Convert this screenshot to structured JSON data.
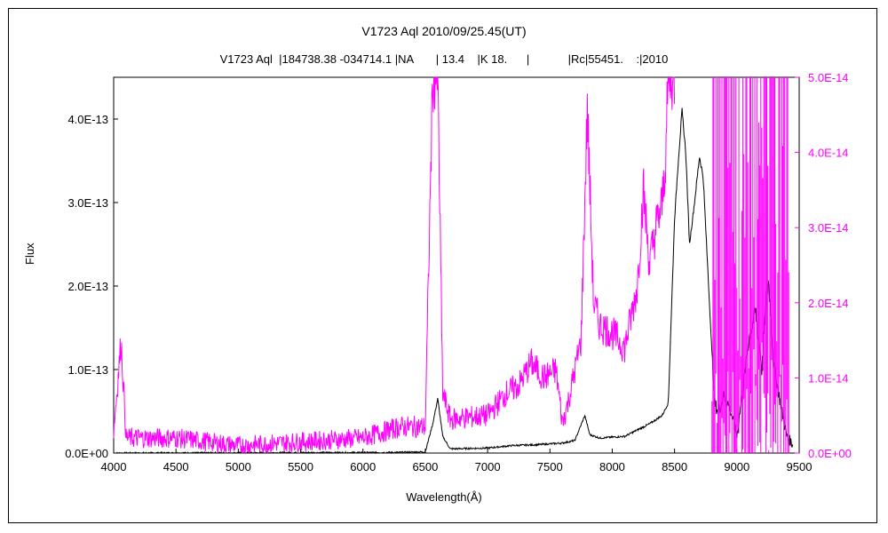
{
  "chart_data": {
    "type": "line",
    "title": "V1723 Aql   2010/09/25.45(UT)",
    "subtitle": "V1723 Aql  |184738.38 -034714.1 |NA       | 13.4    |K 18.      |            |Rc|55451.    :|2010",
    "xlabel": "Wavelength(Å)",
    "ylabel": "Flux",
    "xlim": [
      4000,
      9500
    ],
    "ylim_left": [
      0,
      4.5e-13
    ],
    "ylim_right": [
      0,
      5e-14
    ],
    "x_ticks": [
      4000,
      4500,
      5000,
      5500,
      6000,
      6500,
      7000,
      7500,
      8000,
      8500,
      9000,
      9500
    ],
    "y_ticks_left": [
      "0.0E+00",
      "1.0E-13",
      "2.0E-13",
      "3.0E-13",
      "4.0E-13"
    ],
    "y_ticks_right": [
      "0.0E+00",
      "1.0E-14",
      "2.0E-14",
      "3.0E-14",
      "4.0E-14",
      "5.0E-14"
    ],
    "grid": false,
    "colors": {
      "flux": "#000000",
      "flux_scaled": "#ff00ff"
    },
    "series": [
      {
        "axis": "left",
        "color": "#000000",
        "x": [
          4000,
          4200,
          4500,
          5000,
          5500,
          6000,
          6300,
          6500,
          6560,
          6600,
          6640,
          6700,
          7000,
          7200,
          7400,
          7600,
          7700,
          7780,
          7820,
          7900,
          8100,
          8300,
          8400,
          8450,
          8500,
          8530,
          8560,
          8590,
          8620,
          8660,
          8700,
          8730,
          8780,
          8820,
          8850,
          8900,
          8950,
          9000,
          9050,
          9100,
          9150,
          9200,
          9250,
          9280,
          9300,
          9350,
          9400,
          9450
        ],
        "y": [
          0,
          1e-16,
          2e-16,
          3e-16,
          5e-16,
          6e-16,
          8e-16,
          1.5e-15,
          3.5e-14,
          6.5e-14,
          2e-14,
          5e-15,
          6e-15,
          9e-15,
          1e-14,
          1.2e-14,
          1.5e-14,
          4.5e-14,
          2.2e-14,
          1.8e-14,
          2e-14,
          3.5e-14,
          4.5e-14,
          6e-14,
          2.8e-13,
          3.5e-13,
          4.1e-13,
          3.6e-13,
          2.5e-13,
          3e-13,
          3.55e-13,
          3.3e-13,
          1.8e-13,
          6e-14,
          5e-14,
          7e-14,
          5e-14,
          2e-14,
          8e-14,
          1.4e-13,
          1.7e-13,
          1e-13,
          2.1e-13,
          1.5e-13,
          1e-13,
          6e-14,
          2e-14,
          1e-14
        ]
      },
      {
        "axis": "right",
        "color": "#ff00ff",
        "x": [
          4000,
          4060,
          4100,
          4300,
          4500,
          5000,
          5500,
          6000,
          6300,
          6500,
          6560,
          6600,
          6640,
          6700,
          7000,
          7150,
          7250,
          7350,
          7450,
          7550,
          7600,
          7650,
          7700,
          7750,
          7800,
          7850,
          7900,
          8000,
          8100,
          8200,
          8250,
          8300,
          8350,
          8400,
          8430,
          8450,
          8500
        ],
        "y": [
          3e-15,
          1.5e-14,
          2e-15,
          2e-15,
          2e-15,
          1e-15,
          1.5e-15,
          2e-15,
          3.5e-15,
          3.5e-15,
          5e-14,
          5e-14,
          8e-15,
          4.5e-15,
          5e-15,
          8e-15,
          9e-15,
          1.2e-14,
          1e-14,
          1.1e-14,
          4e-15,
          7e-15,
          1.1e-14,
          1.5e-14,
          4.6e-14,
          2e-14,
          1.7e-14,
          1.6e-14,
          1.4e-14,
          2.2e-14,
          3.5e-14,
          2.5e-14,
          3e-14,
          3.3e-14,
          4e-14,
          5e-14,
          5e-14
        ]
      }
    ]
  }
}
